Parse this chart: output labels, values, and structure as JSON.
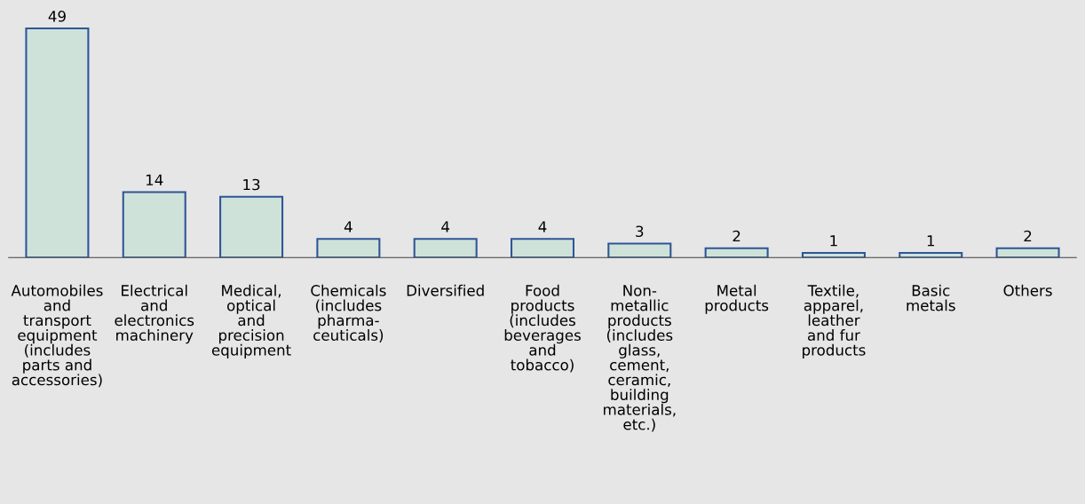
{
  "chart_data": {
    "type": "bar",
    "categories": [
      "Automobiles\nand\ntransport\nequipment\n(includes\nparts and\naccessories)",
      "Electrical\nand\nelectronics\nmachinery",
      "Medical,\noptical\nand\nprecision\nequipment",
      "Chemicals\n(includes\npharma-\nceuticals)",
      "Diversified",
      "Food\nproducts\n(includes\nbeverages\nand\ntobacco)",
      "Non-\nmetallic\nproducts\n(includes\nglass,\ncement,\nceramic,\nbuilding\nmaterials,\netc.)",
      "Metal\nproducts",
      "Textile,\napparel,\nleather\nand fur\nproducts",
      "Basic\nmetals",
      "Others"
    ],
    "values": [
      49,
      14,
      13,
      4,
      4,
      4,
      3,
      2,
      1,
      1,
      2
    ],
    "color": "#cfe2da",
    "data_labels": true
  }
}
